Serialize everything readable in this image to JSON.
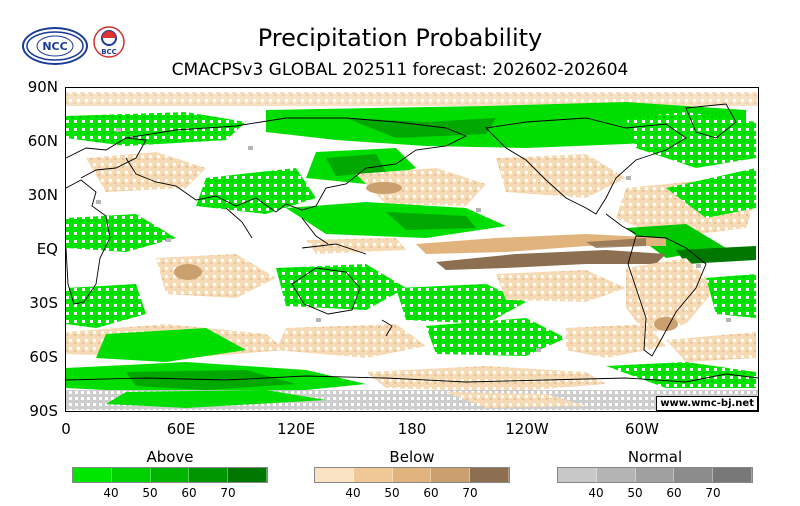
{
  "header": {
    "title": "Precipitation Probability",
    "subtitle": "CMACPSv3 GLOBAL 202511 forecast: 202602-202604"
  },
  "logos": {
    "left": "NCC",
    "right": "BCC"
  },
  "map": {
    "lat_labels": [
      "90N",
      "60N",
      "30N",
      "EQ",
      "30S",
      "60S",
      "90S"
    ],
    "lon_labels": [
      "0",
      "60E",
      "120E",
      "180",
      "120W",
      "60W"
    ],
    "credit": "www.wmc-bj.net"
  },
  "legend": {
    "above": {
      "label": "Above",
      "ticks": [
        "40",
        "50",
        "60",
        "70"
      ],
      "colors": [
        "#00e600",
        "#00d000",
        "#00b400",
        "#009600",
        "#007800"
      ]
    },
    "below": {
      "label": "Below",
      "ticks": [
        "40",
        "50",
        "60",
        "70"
      ],
      "colors": [
        "#fae3c3",
        "#f0c896",
        "#e0b47c",
        "#caa06e",
        "#8c6e50"
      ]
    },
    "normal": {
      "label": "Normal",
      "ticks": [
        "40",
        "50",
        "60",
        "70"
      ],
      "colors": [
        "#c8c8c8",
        "#b4b4b4",
        "#a0a0a0",
        "#8c8c8c",
        "#787878"
      ]
    }
  }
}
